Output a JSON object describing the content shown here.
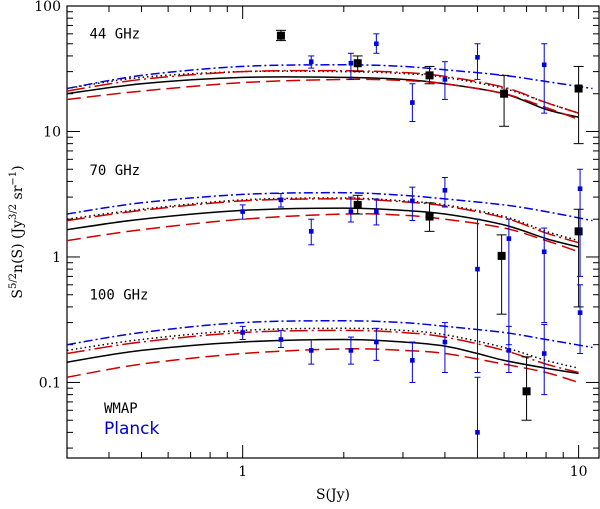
{
  "chart_data": {
    "type": "scatter",
    "title": "",
    "xlabel": "S(Jy)",
    "ylabel": {
      "prefix": "S",
      "prefix_exp": "5/2",
      "mid": "n(S)  (Jy",
      "mid_exp": "3/2",
      "suffix": " sr",
      "suffix_exp": "−1",
      "close": ")"
    },
    "xscale": "log",
    "yscale": "log",
    "xlim": [
      0.3,
      11.5
    ],
    "ylim": [
      0.025,
      100
    ],
    "x_ticks": [
      {
        "v": 1,
        "label": "1"
      },
      {
        "v": 10,
        "label": "10"
      }
    ],
    "y_ticks": [
      {
        "v": 0.1,
        "label": "0.1"
      },
      {
        "v": 1,
        "label": "1"
      },
      {
        "v": 10,
        "label": "10"
      },
      {
        "v": 100,
        "label": "100"
      }
    ],
    "panel_labels": [
      {
        "text": "44 GHz",
        "x": 0.35,
        "y": 55
      },
      {
        "text": "70 GHz",
        "x": 0.35,
        "y": 4.5
      },
      {
        "text": "100 GHz",
        "x": 0.35,
        "y": 0.46
      }
    ],
    "legend": [
      {
        "label": "WMAP",
        "color": "#000000"
      },
      {
        "label": "Planck",
        "color": "#0000cc"
      }
    ],
    "colors": {
      "black": "#000000",
      "blue": "#0000dd",
      "red": "#cc0000"
    },
    "series": [
      {
        "name": "WMAP 44 GHz",
        "marker": "square-large",
        "color": "#000000",
        "points": [
          {
            "x": 1.3,
            "y": 58,
            "lo": 53,
            "hi": 64
          },
          {
            "x": 2.2,
            "y": 35,
            "lo": 30,
            "hi": 40
          },
          {
            "x": 3.6,
            "y": 28,
            "lo": 24,
            "hi": 33
          },
          {
            "x": 6.0,
            "y": 20,
            "lo": 11,
            "hi": 28
          },
          {
            "x": 10.0,
            "y": 22,
            "lo": 8,
            "hi": 33
          }
        ]
      },
      {
        "name": "Planck 44 GHz",
        "marker": "square-small",
        "color": "#0000dd",
        "points": [
          {
            "x": 1.6,
            "y": 36,
            "lo": 32,
            "hi": 40
          },
          {
            "x": 2.1,
            "y": 35,
            "lo": 26,
            "hi": 42
          },
          {
            "x": 2.5,
            "y": 50,
            "lo": 42,
            "hi": 60
          },
          {
            "x": 3.2,
            "y": 17,
            "lo": 12,
            "hi": 24
          },
          {
            "x": 4.0,
            "y": 26,
            "lo": 18,
            "hi": 36
          },
          {
            "x": 5.0,
            "y": 39,
            "lo": 26,
            "hi": 50
          },
          {
            "x": 7.9,
            "y": 34,
            "lo": 14,
            "hi": 50
          }
        ]
      },
      {
        "name": "WMAP 70 GHz",
        "marker": "square-large",
        "color": "#000000",
        "points": [
          {
            "x": 2.2,
            "y": 2.6,
            "lo": 2.2,
            "hi": 3.1
          },
          {
            "x": 3.6,
            "y": 2.1,
            "lo": 1.6,
            "hi": 2.7
          },
          {
            "x": 5.9,
            "y": 1.02,
            "lo": 0.35,
            "hi": 1.5
          },
          {
            "x": 10.0,
            "y": 1.6,
            "lo": 0.4,
            "hi": 2.4
          }
        ]
      },
      {
        "name": "Planck 70 GHz",
        "marker": "square-small",
        "color": "#0000dd",
        "points": [
          {
            "x": 1.0,
            "y": 2.3,
            "lo": 2.0,
            "hi": 2.6
          },
          {
            "x": 1.3,
            "y": 2.85,
            "lo": 2.5,
            "hi": 3.2
          },
          {
            "x": 1.6,
            "y": 1.6,
            "lo": 1.25,
            "hi": 2.0
          },
          {
            "x": 2.1,
            "y": 2.3,
            "lo": 1.9,
            "hi": 3.0
          },
          {
            "x": 2.5,
            "y": 2.3,
            "lo": 1.8,
            "hi": 2.9
          },
          {
            "x": 3.2,
            "y": 2.8,
            "lo": 1.95,
            "hi": 3.6
          },
          {
            "x": 4.0,
            "y": 3.4,
            "lo": 2.5,
            "hi": 4.3
          },
          {
            "x": 5.0,
            "y": 0.8,
            "lo": 0.12,
            "hi": 2.0
          },
          {
            "x": 6.2,
            "y": 1.4,
            "lo": 0.2,
            "hi": 2.0
          },
          {
            "x": 7.9,
            "y": 1.1,
            "lo": 0.3,
            "hi": 1.7
          },
          {
            "x": 10.1,
            "y": 3.5,
            "lo": 0.7,
            "hi": 5.0
          }
        ]
      },
      {
        "name": "Planck 100 GHz",
        "marker": "square-small",
        "color": "#0000dd",
        "points": [
          {
            "x": 1.0,
            "y": 0.25,
            "lo": 0.22,
            "hi": 0.28
          },
          {
            "x": 1.3,
            "y": 0.22,
            "lo": 0.19,
            "hi": 0.26
          },
          {
            "x": 1.6,
            "y": 0.18,
            "lo": 0.14,
            "hi": 0.22
          },
          {
            "x": 2.1,
            "y": 0.18,
            "lo": 0.14,
            "hi": 0.23
          },
          {
            "x": 2.5,
            "y": 0.21,
            "lo": 0.15,
            "hi": 0.27
          },
          {
            "x": 3.2,
            "y": 0.15,
            "lo": 0.1,
            "hi": 0.21
          },
          {
            "x": 4.0,
            "y": 0.21,
            "lo": 0.12,
            "hi": 0.3
          },
          {
            "x": 5.0,
            "y": 0.04,
            "lo": 0.025,
            "hi": 0.11
          },
          {
            "x": 6.2,
            "y": 0.18,
            "lo": 0.12,
            "hi": 0.28
          },
          {
            "x": 7.9,
            "y": 0.17,
            "lo": 0.08,
            "hi": 0.29
          },
          {
            "x": 10.1,
            "y": 0.36,
            "lo": 0.17,
            "hi": 0.6
          }
        ]
      },
      {
        "name": "WMAP 100 GHz",
        "marker": "square-large",
        "color": "#000000",
        "points": [
          {
            "x": 7.0,
            "y": 0.085,
            "lo": 0.05,
            "hi": 0.16
          }
        ]
      }
    ],
    "model_curves": [
      {
        "band": "44 GHz",
        "style": "solid",
        "color": "#000000",
        "x": [
          0.3,
          0.5,
          1.0,
          2.0,
          3.0,
          4.0,
          6.0,
          8.0,
          10.0
        ],
        "y": [
          20,
          24,
          27,
          27,
          26,
          24,
          20,
          15,
          13
        ]
      },
      {
        "band": "44 GHz",
        "style": "dotted",
        "color": "#000000",
        "x": [
          0.3,
          0.5,
          1.0,
          2.0,
          3.0,
          4.0,
          6.0,
          8.0,
          10.0
        ],
        "y": [
          22,
          27,
          30,
          30,
          29,
          27,
          22,
          17,
          14
        ]
      },
      {
        "band": "44 GHz",
        "style": "dash-dot",
        "color": "#0000dd",
        "x": [
          0.3,
          0.5,
          1.0,
          2.0,
          3.0,
          4.0,
          6.0,
          8.0,
          11.0
        ],
        "y": [
          22,
          28,
          33,
          34,
          33,
          31,
          28,
          25,
          22
        ]
      },
      {
        "band": "44 GHz",
        "style": "dashed",
        "color": "#cc0000",
        "x": [
          0.3,
          0.5,
          1.0,
          2.0,
          3.0,
          4.0,
          6.0,
          8.0,
          10.0
        ],
        "y": [
          18,
          21,
          24.5,
          26,
          25.5,
          24,
          20,
          15.5,
          12.5
        ]
      },
      {
        "band": "44 GHz",
        "style": "long-dash-dot",
        "color": "#cc0000",
        "x": [
          0.3,
          0.5,
          1.0,
          2.0,
          3.0,
          4.0,
          6.0,
          8.0,
          10.0
        ],
        "y": [
          21,
          26,
          30,
          30.5,
          29.5,
          27.5,
          22.5,
          17,
          14
        ]
      },
      {
        "band": "70 GHz",
        "style": "solid",
        "color": "#000000",
        "x": [
          0.3,
          0.5,
          1.0,
          2.0,
          3.0,
          4.0,
          6.0,
          8.0,
          10.0
        ],
        "y": [
          1.65,
          2.0,
          2.35,
          2.45,
          2.35,
          2.2,
          1.8,
          1.4,
          1.2
        ]
      },
      {
        "band": "70 GHz",
        "style": "dotted",
        "color": "#000000",
        "x": [
          0.3,
          0.5,
          1.0,
          2.0,
          3.0,
          4.0,
          6.0,
          8.0,
          10.0
        ],
        "y": [
          2.0,
          2.4,
          2.85,
          2.95,
          2.8,
          2.6,
          2.1,
          1.6,
          1.35
        ]
      },
      {
        "band": "70 GHz",
        "style": "dash-dot",
        "color": "#0000dd",
        "x": [
          0.3,
          0.5,
          1.0,
          2.0,
          3.0,
          4.0,
          6.0,
          8.0,
          11.0
        ],
        "y": [
          2.2,
          2.7,
          3.15,
          3.25,
          3.1,
          2.9,
          2.6,
          2.3,
          1.95
        ]
      },
      {
        "band": "70 GHz",
        "style": "dashed",
        "color": "#cc0000",
        "x": [
          0.3,
          0.5,
          1.0,
          2.0,
          3.0,
          4.0,
          6.0,
          8.0,
          10.0
        ],
        "y": [
          1.35,
          1.65,
          2.0,
          2.2,
          2.15,
          2.0,
          1.7,
          1.35,
          1.1
        ]
      },
      {
        "band": "70 GHz",
        "style": "long-dash-dot",
        "color": "#cc0000",
        "x": [
          0.3,
          0.5,
          1.0,
          2.0,
          3.0,
          4.0,
          6.0,
          8.0,
          10.0
        ],
        "y": [
          1.95,
          2.35,
          2.8,
          2.9,
          2.75,
          2.55,
          2.05,
          1.55,
          1.3
        ]
      },
      {
        "band": "100 GHz",
        "style": "solid",
        "color": "#000000",
        "x": [
          0.3,
          0.5,
          1.0,
          2.0,
          3.0,
          4.0,
          5.0,
          6.0,
          8.0,
          10.0
        ],
        "y": [
          0.145,
          0.18,
          0.21,
          0.22,
          0.21,
          0.195,
          0.17,
          0.15,
          0.13,
          0.118
        ]
      },
      {
        "band": "100 GHz",
        "style": "dotted",
        "color": "#000000",
        "x": [
          0.3,
          0.5,
          1.0,
          2.0,
          3.0,
          4.0,
          6.0,
          8.0,
          10.0
        ],
        "y": [
          0.18,
          0.22,
          0.26,
          0.27,
          0.26,
          0.24,
          0.19,
          0.15,
          0.13
        ]
      },
      {
        "band": "100 GHz",
        "style": "dash-dot",
        "color": "#0000dd",
        "x": [
          0.3,
          0.5,
          1.0,
          2.0,
          3.0,
          4.0,
          6.0,
          8.0,
          11.0
        ],
        "y": [
          0.2,
          0.25,
          0.3,
          0.31,
          0.3,
          0.28,
          0.25,
          0.22,
          0.19
        ]
      },
      {
        "band": "100 GHz",
        "style": "dashed",
        "color": "#cc0000",
        "x": [
          0.3,
          0.5,
          1.0,
          2.0,
          3.0,
          4.0,
          6.0,
          8.0,
          10.0
        ],
        "y": [
          0.11,
          0.14,
          0.17,
          0.185,
          0.18,
          0.17,
          0.14,
          0.12,
          0.1
        ]
      },
      {
        "band": "100 GHz",
        "style": "long-dash-dot",
        "color": "#cc0000",
        "x": [
          0.3,
          0.5,
          1.0,
          2.0,
          3.0,
          4.0,
          6.0,
          8.0,
          10.0
        ],
        "y": [
          0.17,
          0.21,
          0.25,
          0.26,
          0.25,
          0.23,
          0.18,
          0.14,
          0.12
        ]
      }
    ]
  }
}
